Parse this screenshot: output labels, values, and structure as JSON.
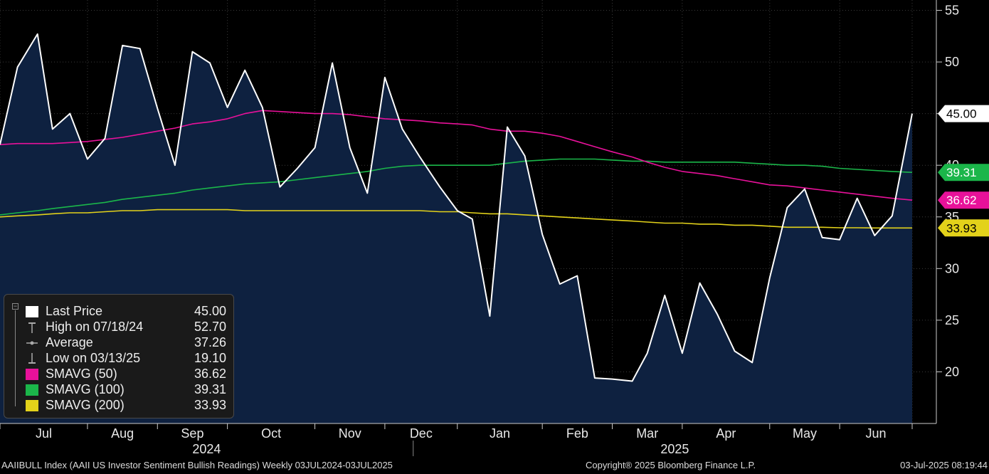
{
  "chart_data": {
    "type": "area",
    "title": "",
    "ylim": [
      15,
      56
    ],
    "y_ticks": [
      20,
      25,
      30,
      35,
      40,
      45,
      50,
      55
    ],
    "month_labels": [
      "Jul",
      "Aug",
      "Sep",
      "Oct",
      "Nov",
      "Dec",
      "Jan",
      "Feb",
      "Mar",
      "Apr",
      "May",
      "Jun"
    ],
    "year_labels": [
      "2024",
      "2025"
    ],
    "x": [
      "2024-07-03",
      "2024-07-10",
      "2024-07-18",
      "2024-07-24",
      "2024-07-31",
      "2024-08-07",
      "2024-08-14",
      "2024-08-21",
      "2024-08-28",
      "2024-09-04",
      "2024-09-11",
      "2024-09-18",
      "2024-09-25",
      "2024-10-02",
      "2024-10-09",
      "2024-10-16",
      "2024-10-23",
      "2024-10-30",
      "2024-11-06",
      "2024-11-13",
      "2024-11-20",
      "2024-11-27",
      "2024-12-04",
      "2024-12-11",
      "2024-12-18",
      "2024-12-26",
      "2025-01-02",
      "2025-01-08",
      "2025-01-15",
      "2025-01-22",
      "2025-01-29",
      "2025-02-05",
      "2025-02-12",
      "2025-02-19",
      "2025-02-26",
      "2025-03-05",
      "2025-03-13",
      "2025-03-19",
      "2025-03-26",
      "2025-04-02",
      "2025-04-09",
      "2025-04-16",
      "2025-04-23",
      "2025-04-30",
      "2025-05-07",
      "2025-05-14",
      "2025-05-21",
      "2025-05-28",
      "2025-06-04",
      "2025-06-11",
      "2025-06-18",
      "2025-06-25",
      "2025-07-03"
    ],
    "series": [
      {
        "name": "Last Price",
        "color": "#ffffff",
        "values": [
          42.0,
          49.5,
          52.7,
          43.5,
          45.0,
          40.6,
          42.6,
          51.6,
          51.3,
          45.5,
          40.0,
          51.0,
          49.9,
          45.6,
          49.2,
          45.6,
          37.9,
          39.7,
          41.7,
          49.9,
          41.7,
          37.3,
          48.5,
          43.5,
          40.8,
          37.9,
          35.6,
          34.8,
          25.4,
          43.7,
          40.9,
          33.3,
          28.5,
          29.3,
          19.4,
          19.3,
          19.1,
          21.8,
          27.4,
          21.8,
          28.6,
          25.6,
          22.0,
          20.9,
          29.1,
          35.9,
          37.7,
          33.0,
          32.8,
          36.8,
          33.2,
          35.1,
          45.0
        ]
      },
      {
        "name": "SMAVG (50)",
        "color": "#e8119a",
        "values": [
          42.0,
          42.1,
          42.1,
          42.1,
          42.2,
          42.3,
          42.5,
          42.7,
          43.0,
          43.3,
          43.6,
          44.0,
          44.2,
          44.5,
          45.0,
          45.3,
          45.2,
          45.1,
          45.0,
          45.0,
          44.9,
          44.7,
          44.5,
          44.4,
          44.3,
          44.1,
          44.0,
          43.9,
          43.5,
          43.3,
          43.3,
          43.1,
          42.8,
          42.3,
          41.8,
          41.3,
          40.8,
          40.3,
          39.8,
          39.4,
          39.2,
          39.0,
          38.7,
          38.4,
          38.1,
          38.0,
          37.8,
          37.6,
          37.4,
          37.2,
          37.0,
          36.8,
          36.62
        ]
      },
      {
        "name": "SMAVG (100)",
        "color": "#1bb64a",
        "values": [
          35.2,
          35.4,
          35.6,
          35.8,
          36.0,
          36.2,
          36.4,
          36.7,
          36.9,
          37.1,
          37.3,
          37.6,
          37.8,
          38.0,
          38.2,
          38.3,
          38.4,
          38.6,
          38.8,
          39.0,
          39.2,
          39.4,
          39.7,
          39.9,
          40.0,
          40.0,
          40.0,
          40.0,
          40.0,
          40.2,
          40.4,
          40.5,
          40.6,
          40.6,
          40.6,
          40.5,
          40.4,
          40.4,
          40.3,
          40.3,
          40.3,
          40.3,
          40.3,
          40.2,
          40.1,
          40.0,
          40.0,
          39.9,
          39.7,
          39.6,
          39.5,
          39.4,
          39.31
        ]
      },
      {
        "name": "SMAVG (200)",
        "color": "#e3d21a",
        "values": [
          35.0,
          35.1,
          35.2,
          35.3,
          35.4,
          35.4,
          35.5,
          35.6,
          35.6,
          35.7,
          35.7,
          35.7,
          35.7,
          35.7,
          35.6,
          35.6,
          35.6,
          35.6,
          35.6,
          35.6,
          35.6,
          35.6,
          35.6,
          35.6,
          35.6,
          35.5,
          35.5,
          35.4,
          35.3,
          35.3,
          35.2,
          35.1,
          35.0,
          34.9,
          34.8,
          34.7,
          34.6,
          34.5,
          34.4,
          34.4,
          34.3,
          34.3,
          34.2,
          34.2,
          34.1,
          34.0,
          34.0,
          34.0,
          33.95,
          33.95,
          33.93,
          33.93,
          33.93
        ]
      }
    ],
    "last_value_tags": [
      {
        "value": 45.0,
        "label": "45.00",
        "bg": "#ffffff",
        "fg": "#000000"
      },
      {
        "value": 39.31,
        "label": "39.31",
        "bg": "#1bb64a",
        "fg": "#ffffff"
      },
      {
        "value": 36.62,
        "label": "36.62",
        "bg": "#e8119a",
        "fg": "#ffffff"
      },
      {
        "value": 33.93,
        "label": "33.93",
        "bg": "#e3d21a",
        "fg": "#000000"
      }
    ],
    "area_fill": "#0e2140",
    "background": "#000000"
  },
  "legend": {
    "rows": [
      {
        "label": "Last Price",
        "value": "45.00",
        "symbol": "box",
        "color": "#ffffff"
      },
      {
        "label": "High on 07/18/24",
        "value": "52.70",
        "symbol": "high",
        "color": "#aaaaaa"
      },
      {
        "label": "Average",
        "value": "37.26",
        "symbol": "avg",
        "color": "#aaaaaa"
      },
      {
        "label": "Low on 03/13/25",
        "value": "19.10",
        "symbol": "low",
        "color": "#aaaaaa"
      },
      {
        "label": "SMAVG (50)",
        "value": "36.62",
        "symbol": "box",
        "color": "#e8119a"
      },
      {
        "label": "SMAVG (100)",
        "value": "39.31",
        "symbol": "box",
        "color": "#1bb64a"
      },
      {
        "label": "SMAVG (200)",
        "value": "33.93",
        "symbol": "box",
        "color": "#e3d21a"
      }
    ]
  },
  "footer": {
    "left": "AAIIBULL Index (AAII US Investor Sentiment Bullish Readings)  Weekly 03JUL2024-03JUL2025",
    "center": "Copyright® 2025 Bloomberg Finance L.P.",
    "right": "03-Jul-2025 08:19:44"
  }
}
